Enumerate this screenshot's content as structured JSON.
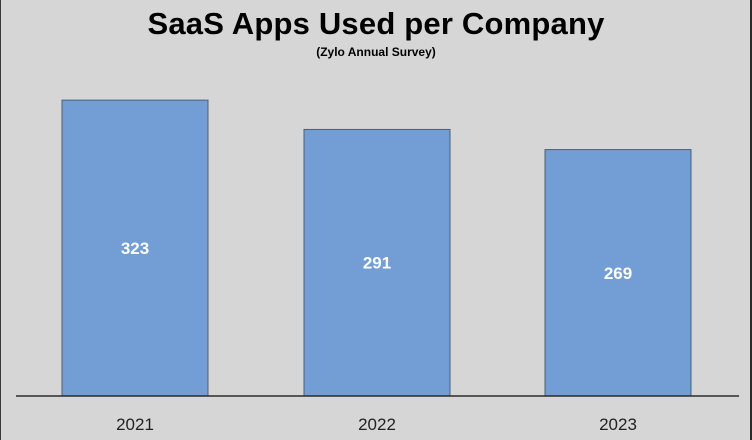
{
  "chart_data": {
    "type": "bar",
    "title": "SaaS Apps Used per Company",
    "subtitle": "(Zylo Annual Survey)",
    "categories": [
      "2021",
      "2022",
      "2023"
    ],
    "values": [
      323,
      291,
      269
    ],
    "data_labels": [
      "323",
      "291",
      "269"
    ],
    "xlabel": "",
    "ylabel": "",
    "ylim": [
      0,
      350
    ],
    "grid": false,
    "legend": "none",
    "colors": {
      "background": "#d6d6d6",
      "bar_fill": "#729dd5",
      "bar_stroke": "#4d5f73",
      "axis": "#2b2b2b",
      "data_label": "#ffffff",
      "tick_label": "#222222"
    }
  }
}
